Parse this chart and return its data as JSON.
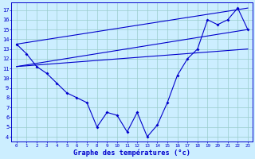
{
  "bg_color": "#cceeff",
  "line_color": "#0000cc",
  "grid_color": "#99cccc",
  "xlabel": "Graphe des températures (°c)",
  "y_ticks": [
    4,
    5,
    6,
    7,
    8,
    9,
    10,
    11,
    12,
    13,
    14,
    15,
    16,
    17
  ],
  "x_labels": [
    "0",
    "1",
    "2",
    "3",
    "4",
    "5",
    "6",
    "7",
    "8",
    "9",
    "10",
    "11",
    "12",
    "13",
    "14",
    "15",
    "16",
    "17",
    "18",
    "19",
    "20",
    "21",
    "22",
    "23"
  ],
  "ylim": [
    3.5,
    17.8
  ],
  "xlim": [
    -0.5,
    23.5
  ],
  "hourly_x": [
    0,
    1,
    2,
    3,
    4,
    5,
    6,
    7,
    8,
    9,
    10,
    11,
    12,
    13,
    14,
    15,
    16,
    17,
    18,
    19,
    20,
    21,
    22,
    23
  ],
  "hourly_y": [
    13.5,
    12.5,
    11.2,
    10.5,
    9.5,
    8.5,
    8.0,
    7.5,
    5.0,
    6.5,
    6.2,
    4.5,
    6.5,
    4.0,
    5.2,
    7.5,
    10.3,
    12.0,
    13.0,
    16.0,
    15.5,
    16.0,
    17.2,
    15.0
  ],
  "trend1_x": [
    0,
    23
  ],
  "trend1_y": [
    13.5,
    17.2
  ],
  "trend2_x": [
    0,
    23
  ],
  "trend2_y": [
    11.2,
    15.0
  ],
  "trend3_x": [
    0,
    23
  ],
  "trend3_y": [
    11.2,
    13.0
  ]
}
